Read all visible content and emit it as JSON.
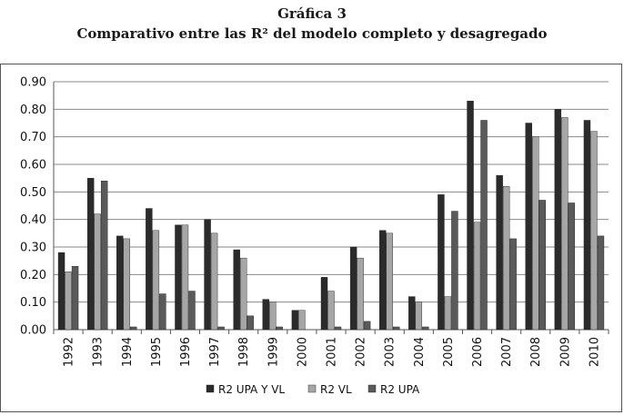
{
  "header": {
    "title": "Gráfica 3",
    "subtitle": "Comparativo entre las R² del modelo completo y desagregado"
  },
  "chart_data": {
    "type": "bar",
    "title": "Gráfica 3",
    "subtitle": "Comparativo entre las R² del modelo completo y desagregado",
    "xlabel": "",
    "ylabel": "",
    "ylim": [
      0,
      0.9
    ],
    "yticks": [
      "0.00",
      "0.10",
      "0.20",
      "0.30",
      "0.40",
      "0.50",
      "0.60",
      "0.70",
      "0.80",
      "0.90"
    ],
    "grid": true,
    "legend_position": "bottom",
    "categories": [
      "1992",
      "1993",
      "1994",
      "1995",
      "1996",
      "1997",
      "1998",
      "1999",
      "2000",
      "2001",
      "2002",
      "2003",
      "2004",
      "2005",
      "2006",
      "2007",
      "2008",
      "2009",
      "2010"
    ],
    "series": [
      {
        "name": "R2 UPA Y VL",
        "color": "#2b2b2b",
        "values": [
          0.28,
          0.55,
          0.34,
          0.44,
          0.38,
          0.4,
          0.29,
          0.11,
          0.07,
          0.19,
          0.3,
          0.36,
          0.12,
          0.49,
          0.83,
          0.56,
          0.75,
          0.8,
          0.76
        ]
      },
      {
        "name": "R2 VL",
        "color": "#a6a6a6",
        "values": [
          0.21,
          0.42,
          0.33,
          0.36,
          0.38,
          0.35,
          0.26,
          0.1,
          0.07,
          0.14,
          0.26,
          0.35,
          0.1,
          0.12,
          0.39,
          0.52,
          0.7,
          0.77,
          0.72
        ]
      },
      {
        "name": "R2 UPA",
        "color": "#5a5a5a",
        "values": [
          0.23,
          0.54,
          0.01,
          0.13,
          0.14,
          0.01,
          0.05,
          0.01,
          0.0,
          0.01,
          0.03,
          0.01,
          0.01,
          0.43,
          0.76,
          0.33,
          0.47,
          0.46,
          0.34
        ]
      }
    ]
  }
}
